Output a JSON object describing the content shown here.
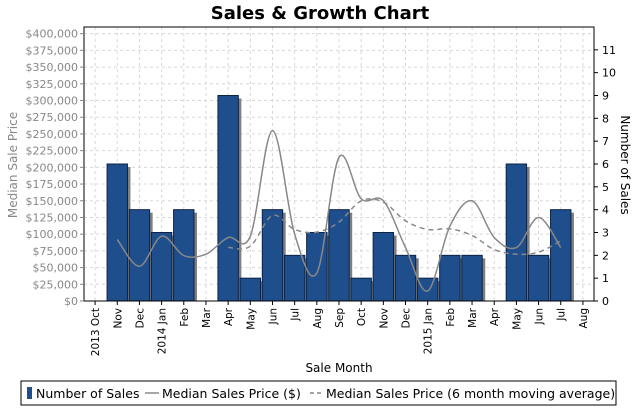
{
  "chart_data": {
    "type": "bar",
    "title": "Sales & Growth Chart",
    "xlabel": "Sale Month",
    "ylabel": "Median Sale Price",
    "y2label": "Number of Sales",
    "ylim": [
      0,
      410000
    ],
    "y2lim": [
      0,
      12
    ],
    "yticks": [
      "$0",
      "$25,000",
      "$50,000",
      "$75,000",
      "$100,000",
      "$125,000",
      "$150,000",
      "$175,000",
      "$200,000",
      "$225,000",
      "$250,000",
      "$275,000",
      "$300,000",
      "$325,000",
      "$350,000",
      "$375,000",
      "$400,000"
    ],
    "y2ticks": [
      "0",
      "1",
      "2",
      "3",
      "4",
      "5",
      "6",
      "7",
      "8",
      "9",
      "10",
      "11"
    ],
    "categories": [
      "2013 Oct",
      "Nov",
      "Dec",
      "2014 Jan",
      "Feb",
      "Mar",
      "Apr",
      "May",
      "Jun",
      "Jul",
      "Aug",
      "Sep",
      "Oct",
      "Nov",
      "Dec",
      "2015 Jan",
      "Feb",
      "Mar",
      "Apr",
      "May",
      "Jun",
      "Jul",
      "Aug"
    ],
    "grid": true,
    "legend_position": "bottom",
    "series": [
      {
        "name": "Number of Sales",
        "kind": "bar",
        "axis": "right",
        "color": "#1f4e8c",
        "values": [
          0,
          6,
          4,
          3,
          4,
          0,
          9,
          1,
          4,
          2,
          3,
          4,
          1,
          3,
          2,
          1,
          2,
          2,
          0,
          6,
          2,
          4,
          0
        ]
      },
      {
        "name": "Median Sales Price ($)",
        "kind": "line",
        "axis": "left",
        "color": "#888888",
        "values": [
          null,
          92000,
          52000,
          97000,
          68000,
          70000,
          95000,
          97000,
          255000,
          100000,
          42000,
          215000,
          153000,
          150000,
          80000,
          15000,
          112000,
          150000,
          95000,
          80000,
          125000,
          80000,
          null
        ]
      },
      {
        "name": "Median Sales Price (6 month moving average)",
        "kind": "dashed-line",
        "axis": "left",
        "color": "#888888",
        "values": [
          null,
          null,
          null,
          null,
          null,
          null,
          80000,
          82000,
          128000,
          107000,
          103000,
          118000,
          150000,
          148000,
          120000,
          107000,
          108000,
          98000,
          77000,
          70000,
          73000,
          90000,
          null
        ]
      }
    ]
  }
}
